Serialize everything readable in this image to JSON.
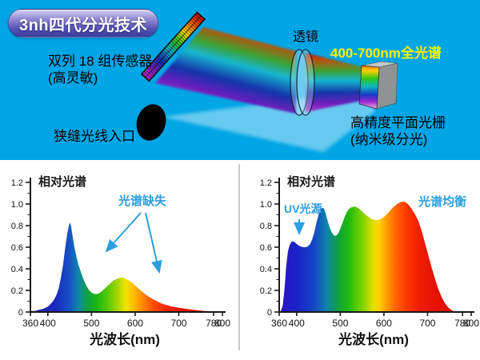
{
  "page": {
    "top_background": "#00A5E5",
    "bottom_background": "#FFFFFF",
    "annotation_blue": "#2B9FE0"
  },
  "header": {
    "badge_label": "3nh四代分光技术"
  },
  "diagram": {
    "labels": {
      "sensor_line1": "双列 18 组传感器",
      "sensor_line2": "(高灵敏)",
      "slit": "狭缝光线入口",
      "lens": "透镜",
      "spectrum_range": "400-700nm全光谱",
      "grating_line1": "高精度平面光栅",
      "grating_line2": "(纳米级分光)"
    },
    "colors": {
      "spectrum_range_text": "#FFF200",
      "label_text": "#000000",
      "badge_gradient_top": "#D6D2F2",
      "badge_gradient_bottom": "#3A3C9C"
    }
  },
  "chart_data": [
    {
      "type": "area",
      "title": "相对光谱",
      "xlabel": "光波长(nm)",
      "xlim": [
        360,
        800
      ],
      "ylim": [
        0,
        1.2
      ],
      "x_ticks": [
        360,
        400,
        500,
        600,
        700,
        780,
        800
      ],
      "y_ticks": [
        0,
        0.2,
        0.4,
        0.6,
        0.8,
        1.0,
        1.2
      ],
      "grid": false,
      "legend": null,
      "annotations": [
        {
          "text": "光谱缺失",
          "color": "#2B9FE0"
        }
      ],
      "points": [
        [
          360,
          0.01
        ],
        [
          370,
          0.01
        ],
        [
          380,
          0.02
        ],
        [
          390,
          0.03
        ],
        [
          400,
          0.05
        ],
        [
          410,
          0.09
        ],
        [
          415,
          0.12
        ],
        [
          420,
          0.16
        ],
        [
          425,
          0.22
        ],
        [
          430,
          0.32
        ],
        [
          435,
          0.44
        ],
        [
          440,
          0.6
        ],
        [
          445,
          0.74
        ],
        [
          450,
          0.83
        ],
        [
          453,
          0.8
        ],
        [
          456,
          0.72
        ],
        [
          460,
          0.62
        ],
        [
          465,
          0.52
        ],
        [
          470,
          0.44
        ],
        [
          475,
          0.38
        ],
        [
          480,
          0.32
        ],
        [
          485,
          0.27
        ],
        [
          490,
          0.23
        ],
        [
          495,
          0.2
        ],
        [
          500,
          0.18
        ],
        [
          505,
          0.17
        ],
        [
          510,
          0.165
        ],
        [
          515,
          0.17
        ],
        [
          520,
          0.18
        ],
        [
          530,
          0.215
        ],
        [
          540,
          0.255
        ],
        [
          550,
          0.29
        ],
        [
          560,
          0.31
        ],
        [
          570,
          0.32
        ],
        [
          575,
          0.315
        ],
        [
          580,
          0.305
        ],
        [
          590,
          0.28
        ],
        [
          600,
          0.245
        ],
        [
          610,
          0.21
        ],
        [
          620,
          0.175
        ],
        [
          630,
          0.145
        ],
        [
          640,
          0.12
        ],
        [
          650,
          0.1
        ],
        [
          660,
          0.08
        ],
        [
          680,
          0.055
        ],
        [
          700,
          0.04
        ],
        [
          720,
          0.028
        ],
        [
          740,
          0.018
        ],
        [
          760,
          0.01
        ],
        [
          780,
          0.006
        ],
        [
          800,
          0.0
        ]
      ],
      "gradient_stops": [
        [
          360,
          "#1F1FB0"
        ],
        [
          420,
          "#1A2BC0"
        ],
        [
          450,
          "#1653C4"
        ],
        [
          470,
          "#0E86A8"
        ],
        [
          490,
          "#0FA040"
        ],
        [
          510,
          "#16B416"
        ],
        [
          535,
          "#52C80A"
        ],
        [
          560,
          "#A6D800"
        ],
        [
          578,
          "#F0E400"
        ],
        [
          595,
          "#FFC000"
        ],
        [
          615,
          "#FF8C00"
        ],
        [
          640,
          "#FF5000"
        ],
        [
          670,
          "#F22800"
        ],
        [
          710,
          "#E41400"
        ],
        [
          800,
          "#D40E00"
        ]
      ]
    },
    {
      "type": "area",
      "title": "相对光谱",
      "xlabel": "光波长(nm)",
      "xlim": [
        360,
        800
      ],
      "ylim": [
        0,
        1.2
      ],
      "x_ticks": [
        360,
        400,
        500,
        600,
        700,
        780,
        800
      ],
      "y_ticks": [
        0,
        0.2,
        0.4,
        0.6,
        0.8,
        1.0,
        1.2
      ],
      "grid": false,
      "legend": null,
      "annotations": [
        {
          "text": "UV光源",
          "color": "#2B9FE0"
        },
        {
          "text": "光谱均衡",
          "color": "#2B9FE0"
        }
      ],
      "points": [
        [
          363,
          0.0
        ],
        [
          368,
          0.06
        ],
        [
          372,
          0.2
        ],
        [
          376,
          0.42
        ],
        [
          380,
          0.56
        ],
        [
          384,
          0.62
        ],
        [
          388,
          0.65
        ],
        [
          392,
          0.655
        ],
        [
          396,
          0.645
        ],
        [
          400,
          0.63
        ],
        [
          405,
          0.615
        ],
        [
          410,
          0.605
        ],
        [
          415,
          0.6
        ],
        [
          420,
          0.6
        ],
        [
          425,
          0.605
        ],
        [
          430,
          0.625
        ],
        [
          435,
          0.665
        ],
        [
          440,
          0.73
        ],
        [
          445,
          0.82
        ],
        [
          450,
          0.9
        ],
        [
          455,
          0.95
        ],
        [
          458,
          0.965
        ],
        [
          462,
          0.96
        ],
        [
          466,
          0.92
        ],
        [
          470,
          0.86
        ],
        [
          475,
          0.79
        ],
        [
          480,
          0.74
        ],
        [
          485,
          0.71
        ],
        [
          490,
          0.705
        ],
        [
          495,
          0.725
        ],
        [
          500,
          0.77
        ],
        [
          505,
          0.825
        ],
        [
          510,
          0.88
        ],
        [
          515,
          0.925
        ],
        [
          520,
          0.955
        ],
        [
          525,
          0.97
        ],
        [
          530,
          0.975
        ],
        [
          535,
          0.975
        ],
        [
          540,
          0.965
        ],
        [
          545,
          0.95
        ],
        [
          550,
          0.93
        ],
        [
          560,
          0.895
        ],
        [
          570,
          0.865
        ],
        [
          580,
          0.85
        ],
        [
          590,
          0.855
        ],
        [
          600,
          0.88
        ],
        [
          610,
          0.92
        ],
        [
          620,
          0.965
        ],
        [
          630,
          1.0
        ],
        [
          640,
          1.02
        ],
        [
          648,
          1.02
        ],
        [
          655,
          1.0
        ],
        [
          662,
          0.965
        ],
        [
          670,
          0.915
        ],
        [
          678,
          0.85
        ],
        [
          685,
          0.77
        ],
        [
          692,
          0.67
        ],
        [
          700,
          0.55
        ],
        [
          708,
          0.43
        ],
        [
          716,
          0.32
        ],
        [
          724,
          0.22
        ],
        [
          732,
          0.14
        ],
        [
          740,
          0.08
        ],
        [
          748,
          0.04
        ],
        [
          756,
          0.015
        ],
        [
          764,
          0.0
        ]
      ],
      "gradient_stops": [
        [
          360,
          "#2A14C4"
        ],
        [
          400,
          "#1A22C8"
        ],
        [
          440,
          "#1545C6"
        ],
        [
          470,
          "#0E86A8"
        ],
        [
          495,
          "#0FA03C"
        ],
        [
          520,
          "#22BC10"
        ],
        [
          550,
          "#7AD200"
        ],
        [
          575,
          "#E0E000"
        ],
        [
          590,
          "#FFD000"
        ],
        [
          605,
          "#FFA000"
        ],
        [
          625,
          "#FF6A00"
        ],
        [
          650,
          "#FF3A00"
        ],
        [
          680,
          "#F01E00"
        ],
        [
          720,
          "#E41200"
        ],
        [
          800,
          "#DC0E00"
        ]
      ]
    }
  ]
}
